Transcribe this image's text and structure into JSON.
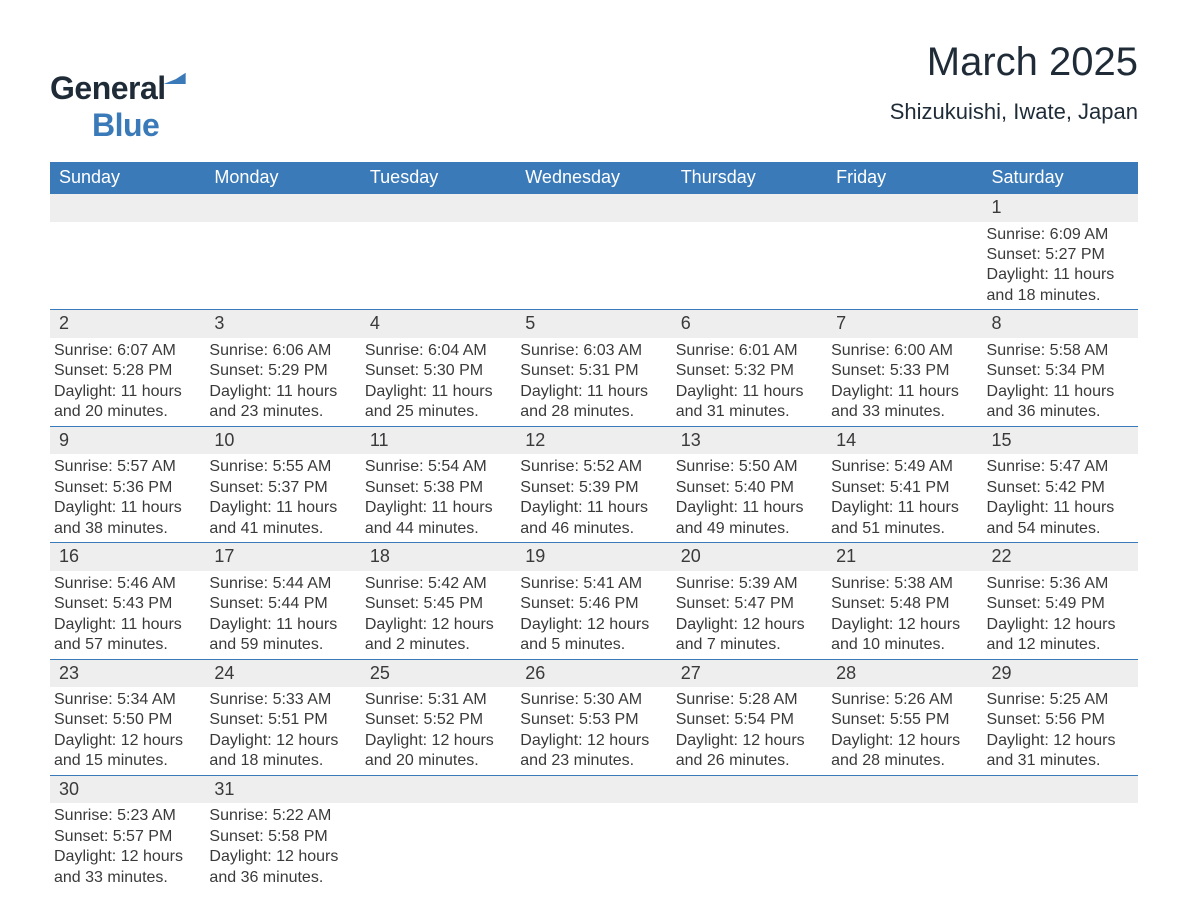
{
  "brand": {
    "name_part1": "General",
    "name_part2": "Blue"
  },
  "title": "March 2025",
  "location": "Shizukuishi, Iwate, Japan",
  "colors": {
    "header_bg": "#3a7ab8",
    "header_text": "#ffffff",
    "daynum_bg": "#eeeeee",
    "row_border": "#3a7ab8",
    "body_text": "#3a3a3a",
    "title_text": "#1f2c38"
  },
  "typography": {
    "title_fontsize": 40,
    "location_fontsize": 22,
    "header_fontsize": 18,
    "daynum_fontsize": 18,
    "detail_fontsize": 16
  },
  "weekdays": [
    "Sunday",
    "Monday",
    "Tuesday",
    "Wednesday",
    "Thursday",
    "Friday",
    "Saturday"
  ],
  "weeks": [
    {
      "nums": [
        "",
        "",
        "",
        "",
        "",
        "",
        "1"
      ],
      "details": [
        "",
        "",
        "",
        "",
        "",
        "",
        "Sunrise: 6:09 AM\nSunset: 5:27 PM\nDaylight: 11 hours and 18 minutes."
      ]
    },
    {
      "nums": [
        "2",
        "3",
        "4",
        "5",
        "6",
        "7",
        "8"
      ],
      "details": [
        "Sunrise: 6:07 AM\nSunset: 5:28 PM\nDaylight: 11 hours and 20 minutes.",
        "Sunrise: 6:06 AM\nSunset: 5:29 PM\nDaylight: 11 hours and 23 minutes.",
        "Sunrise: 6:04 AM\nSunset: 5:30 PM\nDaylight: 11 hours and 25 minutes.",
        "Sunrise: 6:03 AM\nSunset: 5:31 PM\nDaylight: 11 hours and 28 minutes.",
        "Sunrise: 6:01 AM\nSunset: 5:32 PM\nDaylight: 11 hours and 31 minutes.",
        "Sunrise: 6:00 AM\nSunset: 5:33 PM\nDaylight: 11 hours and 33 minutes.",
        "Sunrise: 5:58 AM\nSunset: 5:34 PM\nDaylight: 11 hours and 36 minutes."
      ]
    },
    {
      "nums": [
        "9",
        "10",
        "11",
        "12",
        "13",
        "14",
        "15"
      ],
      "details": [
        "Sunrise: 5:57 AM\nSunset: 5:36 PM\nDaylight: 11 hours and 38 minutes.",
        "Sunrise: 5:55 AM\nSunset: 5:37 PM\nDaylight: 11 hours and 41 minutes.",
        "Sunrise: 5:54 AM\nSunset: 5:38 PM\nDaylight: 11 hours and 44 minutes.",
        "Sunrise: 5:52 AM\nSunset: 5:39 PM\nDaylight: 11 hours and 46 minutes.",
        "Sunrise: 5:50 AM\nSunset: 5:40 PM\nDaylight: 11 hours and 49 minutes.",
        "Sunrise: 5:49 AM\nSunset: 5:41 PM\nDaylight: 11 hours and 51 minutes.",
        "Sunrise: 5:47 AM\nSunset: 5:42 PM\nDaylight: 11 hours and 54 minutes."
      ]
    },
    {
      "nums": [
        "16",
        "17",
        "18",
        "19",
        "20",
        "21",
        "22"
      ],
      "details": [
        "Sunrise: 5:46 AM\nSunset: 5:43 PM\nDaylight: 11 hours and 57 minutes.",
        "Sunrise: 5:44 AM\nSunset: 5:44 PM\nDaylight: 11 hours and 59 minutes.",
        "Sunrise: 5:42 AM\nSunset: 5:45 PM\nDaylight: 12 hours and 2 minutes.",
        "Sunrise: 5:41 AM\nSunset: 5:46 PM\nDaylight: 12 hours and 5 minutes.",
        "Sunrise: 5:39 AM\nSunset: 5:47 PM\nDaylight: 12 hours and 7 minutes.",
        "Sunrise: 5:38 AM\nSunset: 5:48 PM\nDaylight: 12 hours and 10 minutes.",
        "Sunrise: 5:36 AM\nSunset: 5:49 PM\nDaylight: 12 hours and 12 minutes."
      ]
    },
    {
      "nums": [
        "23",
        "24",
        "25",
        "26",
        "27",
        "28",
        "29"
      ],
      "details": [
        "Sunrise: 5:34 AM\nSunset: 5:50 PM\nDaylight: 12 hours and 15 minutes.",
        "Sunrise: 5:33 AM\nSunset: 5:51 PM\nDaylight: 12 hours and 18 minutes.",
        "Sunrise: 5:31 AM\nSunset: 5:52 PM\nDaylight: 12 hours and 20 minutes.",
        "Sunrise: 5:30 AM\nSunset: 5:53 PM\nDaylight: 12 hours and 23 minutes.",
        "Sunrise: 5:28 AM\nSunset: 5:54 PM\nDaylight: 12 hours and 26 minutes.",
        "Sunrise: 5:26 AM\nSunset: 5:55 PM\nDaylight: 12 hours and 28 minutes.",
        "Sunrise: 5:25 AM\nSunset: 5:56 PM\nDaylight: 12 hours and 31 minutes."
      ]
    },
    {
      "nums": [
        "30",
        "31",
        "",
        "",
        "",
        "",
        ""
      ],
      "details": [
        "Sunrise: 5:23 AM\nSunset: 5:57 PM\nDaylight: 12 hours and 33 minutes.",
        "Sunrise: 5:22 AM\nSunset: 5:58 PM\nDaylight: 12 hours and 36 minutes.",
        "",
        "",
        "",
        "",
        ""
      ]
    }
  ]
}
